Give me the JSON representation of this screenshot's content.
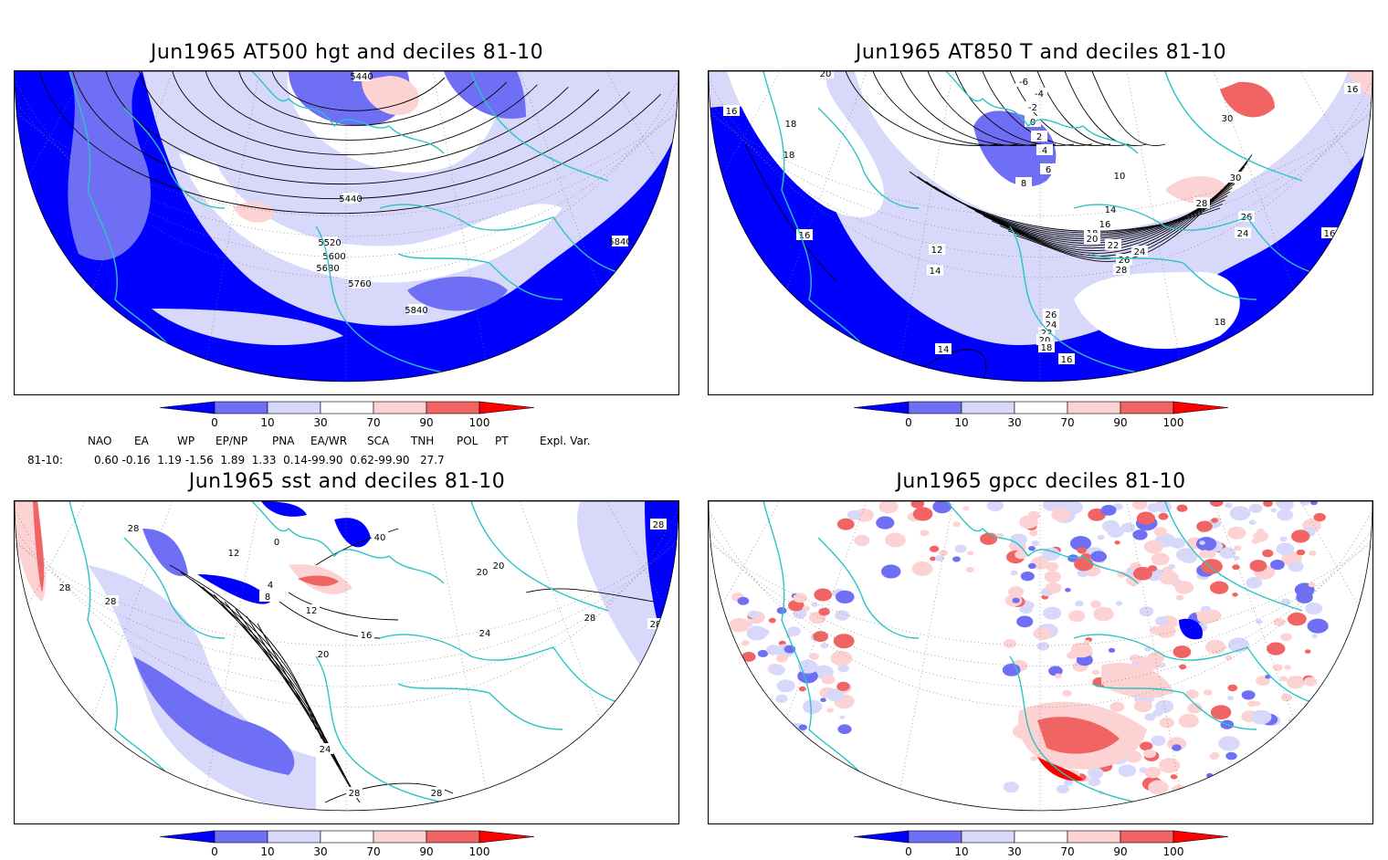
{
  "panels": [
    {
      "title": "Jun1965 AT500 hgt and deciles 81-10",
      "contour_labels": [
        "5440",
        "5440",
        "5520",
        "5600",
        "5680",
        "5760",
        "5840",
        "5840"
      ]
    },
    {
      "title": "Jun1965 AT850 T and deciles 81-10",
      "contour_labels": [
        "20",
        "16",
        "18",
        "18",
        "16",
        "12",
        "14",
        "14",
        "-6",
        "-4",
        "-2",
        "0",
        "2",
        "4",
        "6",
        "8",
        "10",
        "14",
        "16",
        "18",
        "20",
        "22",
        "24",
        "26",
        "28",
        "26",
        "24",
        "22",
        "20",
        "18",
        "16",
        "28",
        "30",
        "30",
        "26",
        "24",
        "16",
        "18",
        "16"
      ]
    },
    {
      "title": "Jun1965 sst and deciles 81-10",
      "contour_labels": [
        "28",
        "28",
        "28",
        "12",
        "0",
        "4",
        "8",
        "12",
        "16",
        "20",
        "24",
        "28",
        "28",
        "40",
        "20",
        "20",
        "24",
        "28",
        "28",
        "28"
      ]
    },
    {
      "title": "Jun1965 gpcc deciles 81-10",
      "contour_labels": []
    }
  ],
  "colorbar": {
    "ticks": [
      "0",
      "10",
      "30",
      "70",
      "90",
      "100"
    ],
    "colors": [
      "#0000ff",
      "#6f6ff5",
      "#d8d8fa",
      "#ffffff",
      "#fcd2d2",
      "#f06464",
      "#ff0000"
    ]
  },
  "indices": {
    "headers": [
      "NAO",
      "EA",
      "WP",
      "EP/NP",
      "PNA",
      "EA/WR",
      "SCA",
      "TNH",
      "POL",
      "PT",
      "Expl. Var."
    ],
    "row_label": "81-10:",
    "values": "0.60 -0.16  1.19 -1.56  1.89  1.33  0.14-99.90  0.62-99.90   27.7"
  }
}
